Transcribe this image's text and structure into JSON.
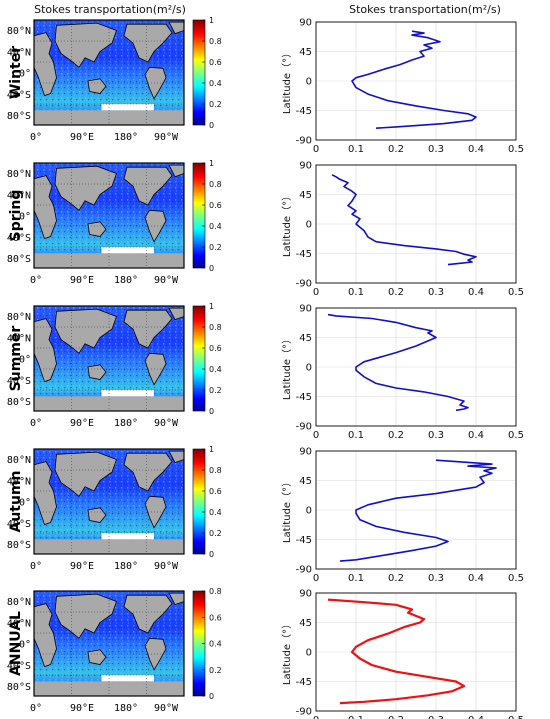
{
  "left_title": "Stokes transportation(m²/s)",
  "right_title": "Stokes transportation(m²/s)",
  "map_lat_ticks": [
    "80°N",
    "40°N",
    "0°",
    "40°S",
    "80°S"
  ],
  "map_lon_ticks": [
    "0°",
    "90°E",
    "180°",
    "90°W"
  ],
  "colors": {
    "ocean_low": "#1838ff",
    "ocean_mid": "#3fa0ff",
    "land": "#a9a9a9",
    "profile_blue": "#1010cc",
    "profile_red": "#ee1111"
  },
  "panels": [
    {
      "season": "Winter",
      "colorbar_ticks": [
        "1",
        "0.8",
        "0.6",
        "0.4",
        "0.2",
        "0"
      ],
      "profile": {
        "xlabel": "",
        "ylabel": "Latitude（°）",
        "x_ticks": [
          "0",
          "0.1",
          "0.2",
          "0.3",
          "0.4",
          "0.5"
        ],
        "y_ticks": [
          "90",
          "45",
          "0",
          "-45",
          "-90"
        ]
      }
    },
    {
      "season": "Spring",
      "colorbar_ticks": [
        "1",
        "0.8",
        "0.6",
        "0.4",
        "0.2",
        "0"
      ],
      "profile": {
        "xlabel": "",
        "ylabel": "Latitude（°）",
        "x_ticks": [
          "0",
          "0.1",
          "0.2",
          "0.3",
          "0.4",
          "0.5"
        ],
        "y_ticks": [
          "90",
          "45",
          "0",
          "-45",
          "-90"
        ]
      }
    },
    {
      "season": "Summer",
      "colorbar_ticks": [
        "1",
        "0.8",
        "0.6",
        "0.4",
        "0.2",
        "0"
      ],
      "profile": {
        "xlabel": "",
        "ylabel": "Latitude（°）",
        "x_ticks": [
          "0",
          "0.1",
          "0.2",
          "0.3",
          "0.4",
          "0.5"
        ],
        "y_ticks": [
          "90",
          "45",
          "0",
          "-45",
          "-90"
        ]
      }
    },
    {
      "season": "Autumn",
      "colorbar_ticks": [
        "1",
        "0.8",
        "0.6",
        "0.4",
        "0.2",
        "0"
      ],
      "profile": {
        "xlabel": "",
        "ylabel": "Latitude（°）",
        "x_ticks": [
          "0",
          "0.1",
          "0.2",
          "0.3",
          "0.4",
          "0.5"
        ],
        "y_ticks": [
          "90",
          "45",
          "0",
          "-45",
          "-90"
        ]
      }
    },
    {
      "season": "ANNUAL",
      "colorbar_ticks": [
        "0.8",
        "0.6",
        "0.4",
        "0.2",
        "0"
      ],
      "profile": {
        "xlabel": "",
        "ylabel": "Latitude（°）",
        "x_ticks": [
          "0",
          "0.1",
          "0.2",
          "0.3",
          "0.4",
          "0.5"
        ],
        "y_ticks": [
          "90",
          "45",
          "0",
          "-45",
          "-90"
        ]
      }
    }
  ],
  "chart_data": [
    {
      "type": "line",
      "panel": "Winter",
      "xlim": [
        0,
        0.5
      ],
      "ylim": [
        -90,
        90
      ],
      "grid": true,
      "color": "blue",
      "x": [
        0.15,
        0.2,
        0.25,
        0.32,
        0.39,
        0.4,
        0.38,
        0.32,
        0.25,
        0.18,
        0.13,
        0.1,
        0.09,
        0.1,
        0.13,
        0.17,
        0.21,
        0.24,
        0.27,
        0.26,
        0.29,
        0.27,
        0.31,
        0.28,
        0.24,
        0.27,
        0.24
      ],
      "y": [
        -72,
        -70,
        -68,
        -65,
        -60,
        -55,
        -50,
        -45,
        -38,
        -30,
        -20,
        -10,
        0,
        5,
        10,
        18,
        25,
        32,
        38,
        45,
        50,
        55,
        60,
        66,
        70,
        73,
        76
      ]
    },
    {
      "type": "line",
      "panel": "Spring",
      "xlim": [
        0,
        0.5
      ],
      "ylim": [
        -90,
        90
      ],
      "grid": true,
      "color": "blue",
      "x": [
        0.33,
        0.36,
        0.39,
        0.38,
        0.4,
        0.37,
        0.35,
        0.3,
        0.22,
        0.15,
        0.13,
        0.12,
        0.1,
        0.11,
        0.09,
        0.1,
        0.08,
        0.09,
        0.1,
        0.09,
        0.07,
        0.08,
        0.06,
        0.05,
        0.04
      ],
      "y": [
        -62,
        -60,
        -58,
        -55,
        -50,
        -46,
        -42,
        -38,
        -33,
        -27,
        -20,
        -10,
        0,
        8,
        15,
        20,
        28,
        35,
        45,
        50,
        57,
        63,
        68,
        72,
        75
      ]
    },
    {
      "type": "line",
      "panel": "Summer",
      "xlim": [
        0,
        0.5
      ],
      "ylim": [
        -90,
        90
      ],
      "grid": true,
      "color": "blue",
      "x": [
        0.35,
        0.37,
        0.38,
        0.36,
        0.37,
        0.33,
        0.27,
        0.2,
        0.15,
        0.12,
        0.1,
        0.1,
        0.12,
        0.16,
        0.2,
        0.25,
        0.3,
        0.28,
        0.29,
        0.25,
        0.2,
        0.14,
        0.05,
        0.03
      ],
      "y": [
        -66,
        -64,
        -62,
        -58,
        -52,
        -45,
        -38,
        -32,
        -25,
        -15,
        -5,
        0,
        8,
        15,
        22,
        32,
        45,
        52,
        55,
        60,
        68,
        74,
        78,
        80
      ]
    },
    {
      "type": "line",
      "panel": "Autumn",
      "xlim": [
        0,
        0.5
      ],
      "ylim": [
        -90,
        90
      ],
      "grid": true,
      "color": "blue",
      "x": [
        0.06,
        0.1,
        0.14,
        0.18,
        0.24,
        0.3,
        0.33,
        0.3,
        0.22,
        0.15,
        0.11,
        0.1,
        0.1,
        0.13,
        0.2,
        0.3,
        0.4,
        0.42,
        0.41,
        0.44,
        0.42,
        0.45,
        0.38,
        0.44,
        0.3
      ],
      "y": [
        -78,
        -76,
        -72,
        -68,
        -62,
        -55,
        -48,
        -42,
        -34,
        -25,
        -15,
        -5,
        0,
        8,
        18,
        25,
        35,
        42,
        50,
        56,
        60,
        64,
        67,
        70,
        76
      ]
    },
    {
      "type": "line",
      "panel": "ANNUAL",
      "xlim": [
        0,
        0.5
      ],
      "ylim": [
        -90,
        90
      ],
      "grid": true,
      "color": "red",
      "x": [
        0.06,
        0.12,
        0.2,
        0.28,
        0.34,
        0.37,
        0.35,
        0.28,
        0.2,
        0.14,
        0.11,
        0.09,
        0.1,
        0.13,
        0.18,
        0.22,
        0.26,
        0.27,
        0.25,
        0.23,
        0.24,
        0.2,
        0.12,
        0.03
      ],
      "y": [
        -78,
        -76,
        -72,
        -66,
        -60,
        -52,
        -45,
        -38,
        -30,
        -20,
        -10,
        0,
        8,
        18,
        28,
        38,
        45,
        50,
        55,
        60,
        65,
        72,
        76,
        80
      ]
    }
  ]
}
